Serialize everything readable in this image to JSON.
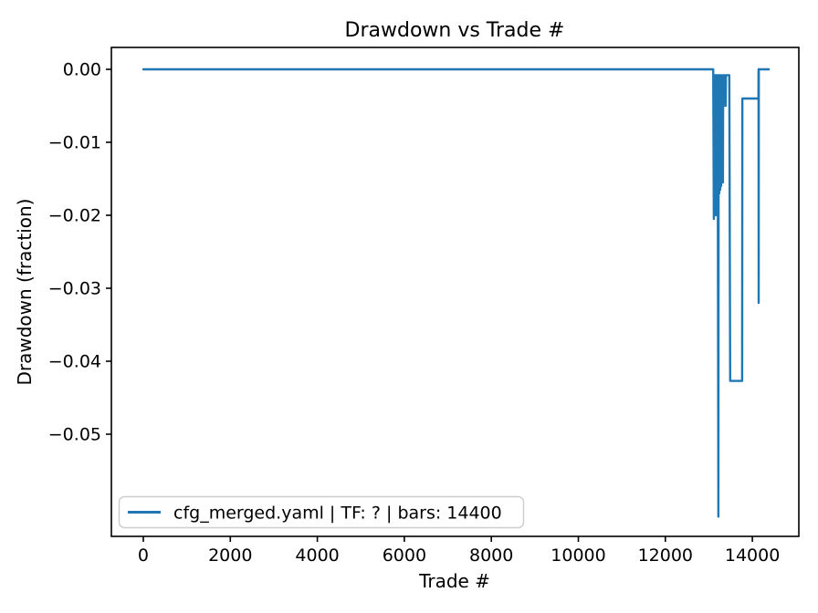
{
  "chart_data": {
    "type": "line",
    "title": "Drawdown vs Trade #",
    "xlabel": "Trade #",
    "ylabel": "Drawdown (fraction)",
    "grid": false,
    "legend_position": "lower left",
    "xlim": [
      -734,
      15068
    ],
    "ylim": [
      -0.064,
      0.003
    ],
    "xticks": {
      "values": [
        0,
        2000,
        4000,
        6000,
        8000,
        10000,
        12000,
        14000
      ],
      "labels": [
        "0",
        "2000",
        "4000",
        "6000",
        "8000",
        "10000",
        "12000",
        "14000"
      ]
    },
    "yticks": {
      "values": [
        0.0,
        -0.01,
        -0.02,
        -0.03,
        -0.04,
        -0.05
      ],
      "labels": [
        "0.00",
        "−0.01",
        "−0.02",
        "−0.03",
        "−0.04",
        "−0.05"
      ]
    },
    "series": [
      {
        "name": "cfg_merged.yaml | TF: ? | bars: 14400",
        "color": "#1f77b4",
        "points": [
          [
            0,
            0.0
          ],
          [
            13100,
            0.0
          ],
          [
            13114,
            -0.0205
          ],
          [
            13118,
            -0.0008
          ],
          [
            13135,
            -0.0165
          ],
          [
            13139,
            -0.0008
          ],
          [
            13156,
            -0.02
          ],
          [
            13160,
            -0.0008
          ],
          [
            13177,
            -0.017
          ],
          [
            13181,
            -0.0008
          ],
          [
            13198,
            -0.02
          ],
          [
            13202,
            -0.0008
          ],
          [
            13219,
            -0.0613
          ],
          [
            13225,
            -0.0008
          ],
          [
            13240,
            -0.017
          ],
          [
            13245,
            -0.0008
          ],
          [
            13261,
            -0.0165
          ],
          [
            13266,
            -0.0008
          ],
          [
            13282,
            -0.016
          ],
          [
            13287,
            -0.0008
          ],
          [
            13324,
            -0.0155
          ],
          [
            13329,
            -0.0008
          ],
          [
            13345,
            -0.005
          ],
          [
            13350,
            -0.0008
          ],
          [
            13366,
            -0.0048
          ],
          [
            13371,
            -0.0008
          ],
          [
            13387,
            -0.005
          ],
          [
            13392,
            -0.0008
          ],
          [
            13470,
            -0.0008
          ],
          [
            13490,
            -0.0427
          ],
          [
            13765,
            -0.0427
          ],
          [
            13770,
            -0.004
          ],
          [
            14140,
            -0.004
          ],
          [
            14142,
            0.0
          ],
          [
            14145,
            -0.032
          ],
          [
            14148,
            0.0
          ],
          [
            14380,
            0.0
          ]
        ]
      }
    ]
  },
  "colors": {
    "line": "#1f77b4",
    "spine": "#000000",
    "text": "#000000",
    "legend_border": "#cccccc",
    "plot_background": "#ffffff"
  }
}
